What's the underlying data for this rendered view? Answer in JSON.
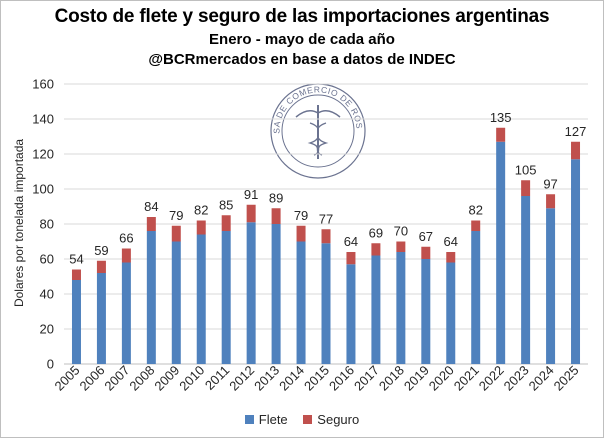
{
  "chart_data": {
    "type": "bar",
    "stacked": true,
    "title": "Costo de flete y seguro de las importaciones argentinas",
    "subtitle": "Enero - mayo de cada año",
    "source_line": "@BCRmercados en base a datos de INDEC",
    "ylabel": "Dolares por tonelada importada",
    "xlabel": "",
    "ylim": [
      0,
      160
    ],
    "yticks": [
      "0",
      "20",
      "40",
      "60",
      "80",
      "100",
      "120",
      "140",
      "160"
    ],
    "grid": true,
    "legend_position": "bottom",
    "categories": [
      "2005",
      "2006",
      "2007",
      "2008",
      "2009",
      "2010",
      "2011",
      "2012",
      "2013",
      "2014",
      "2015",
      "2016",
      "2017",
      "2018",
      "2019",
      "2020",
      "2021",
      "2022",
      "2023",
      "2024",
      "2025"
    ],
    "series": [
      {
        "name": "Flete",
        "color": "#4f81bd",
        "values": [
          48,
          52,
          58,
          76,
          70,
          74,
          76,
          81,
          80,
          70,
          69,
          57,
          62,
          64,
          60,
          58,
          76,
          127,
          96,
          89,
          117
        ]
      },
      {
        "name": "Seguro",
        "color": "#c0504d",
        "values": [
          6,
          7,
          8,
          8,
          9,
          8,
          9,
          10,
          9,
          9,
          8,
          7,
          7,
          6,
          7,
          6,
          6,
          8,
          9,
          8,
          10
        ]
      }
    ],
    "totals": [
      "54",
      "59",
      "66",
      "84",
      "79",
      "82",
      "85",
      "91",
      "89",
      "79",
      "77",
      "64",
      "69",
      "70",
      "67",
      "64",
      "82",
      "135",
      "105",
      "97",
      "127"
    ]
  },
  "watermark": {
    "text": "BOLSA DE COMERCIO DE ROSARIO",
    "color": "#6b7390"
  }
}
